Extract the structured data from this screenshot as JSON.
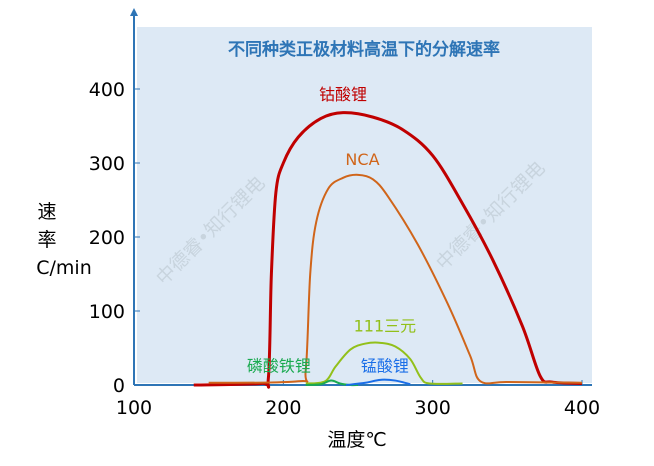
{
  "chart_data": {
    "type": "line",
    "title": "不同种类正极材料高温下的分解速率",
    "xlabel": "温度℃",
    "ylabel_lines": [
      "速",
      "率",
      "C/min"
    ],
    "xlim": [
      100,
      400
    ],
    "ylim": [
      0,
      400
    ],
    "xticks": [
      100,
      200,
      300,
      400
    ],
    "yticks": [
      0,
      100,
      200,
      300,
      400
    ],
    "grid": false,
    "background": "#dde9f5",
    "watermark": "中德睿•知行锂电",
    "series": [
      {
        "name": "钴酸锂",
        "color": "#c00000",
        "label_at": [
          240,
          385
        ],
        "x": [
          140,
          185,
          190,
          192,
          195,
          200,
          210,
          225,
          240,
          260,
          280,
          300,
          320,
          340,
          360,
          372,
          380,
          400
        ],
        "y": [
          0,
          2,
          10,
          150,
          260,
          300,
          335,
          360,
          368,
          362,
          345,
          310,
          245,
          170,
          80,
          12,
          4,
          2
        ]
      },
      {
        "name": "NCA",
        "color": "#d0651a",
        "label_at": [
          253,
          297
        ],
        "x": [
          150,
          210,
          215,
          218,
          222,
          230,
          240,
          250,
          260,
          270,
          290,
          310,
          325,
          332,
          350,
          400
        ],
        "y": [
          3,
          5,
          20,
          150,
          220,
          265,
          280,
          284,
          278,
          255,
          190,
          110,
          40,
          5,
          4,
          3
        ]
      },
      {
        "name": "111三元",
        "color": "#92c01a",
        "label_at": [
          268,
          72
        ],
        "x": [
          215,
          228,
          235,
          245,
          255,
          265,
          275,
          285,
          292,
          298,
          320
        ],
        "y": [
          2,
          5,
          25,
          48,
          56,
          57,
          52,
          35,
          10,
          2,
          2
        ]
      },
      {
        "name": "磷酸铁锂",
        "color": "#1aaa50",
        "label_at": [
          197,
          18
        ],
        "x": [
          215,
          225,
          232,
          238,
          245,
          250
        ],
        "y": [
          0,
          1,
          6,
          2,
          0,
          0
        ]
      },
      {
        "name": "锰酸锂",
        "color": "#1a6ee8",
        "label_at": [
          268,
          18
        ],
        "x": [
          242,
          255,
          265,
          275,
          285
        ],
        "y": [
          0,
          3,
          7,
          6,
          1
        ]
      }
    ]
  }
}
